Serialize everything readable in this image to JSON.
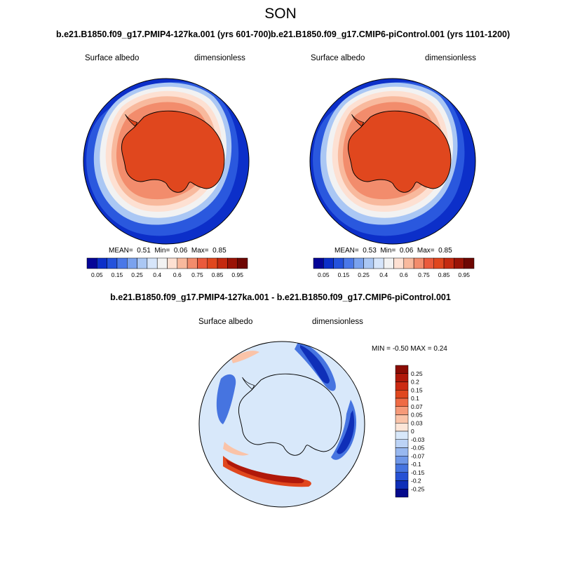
{
  "main_title": "SON",
  "panels": [
    {
      "case_title": "b.e21.B1850.f09_g17.PMIP4-127ka.001 (yrs 601-700)",
      "left_label": "Surface albedo",
      "right_label": "dimensionless",
      "stats": {
        "mean_label": "MEAN=",
        "mean": "0.51",
        "min_label": "Min=",
        "min": "0.06",
        "max_label": "Max=",
        "max": "0.85"
      }
    },
    {
      "case_title": "b.e21.B1850.f09_g17.CMIP6-piControl.001 (yrs 1101-1200)",
      "left_label": "Surface albedo",
      "right_label": "dimensionless",
      "stats": {
        "mean_label": "MEAN=",
        "mean": "0.53",
        "min_label": "Min=",
        "min": "0.06",
        "max_label": "Max=",
        "max": "0.85"
      }
    }
  ],
  "diff_panel": {
    "title": "b.e21.B1850.f09_g17.PMIP4-127ka.001 - b.e21.B1850.f09_g17.CMIP6-piControl.001",
    "left_label": "Surface albedo",
    "right_label": "dimensionless",
    "stats_text": "MIN =  -0.50 MAX =   0.24"
  },
  "chart_data": [
    {
      "type": "heatmap",
      "projection": "south-polar-stereographic",
      "variable": "Surface albedo",
      "units": "dimensionless",
      "mean": 0.51,
      "min": 0.06,
      "max": 0.85,
      "colorbar": {
        "orientation": "horizontal",
        "levels": [
          0.05,
          0.1,
          0.15,
          0.2,
          0.25,
          0.3,
          0.4,
          0.5,
          0.6,
          0.7,
          0.75,
          0.8,
          0.85,
          0.9,
          0.95
        ],
        "labels": [
          "0.05",
          "0.15",
          "0.25",
          "0.4",
          "0.6",
          "0.75",
          "0.85",
          "0.95"
        ],
        "colors": [
          "#050597",
          "#0c2fc9",
          "#2452dc",
          "#4a78e8",
          "#7aa2ee",
          "#aac7f4",
          "#d6e5fa",
          "#f2f2f2",
          "#fde0d2",
          "#f8b99d",
          "#f28c6c",
          "#ea5a3c",
          "#e0471e",
          "#c42a10",
          "#9a1306",
          "#6e0703"
        ]
      }
    },
    {
      "type": "heatmap",
      "projection": "south-polar-stereographic",
      "variable": "Surface albedo",
      "units": "dimensionless",
      "mean": 0.53,
      "min": 0.06,
      "max": 0.85,
      "colorbar": {
        "orientation": "horizontal",
        "levels": [
          0.05,
          0.1,
          0.15,
          0.2,
          0.25,
          0.3,
          0.4,
          0.5,
          0.6,
          0.7,
          0.75,
          0.8,
          0.85,
          0.9,
          0.95
        ],
        "labels": [
          "0.05",
          "0.15",
          "0.25",
          "0.4",
          "0.6",
          "0.75",
          "0.85",
          "0.95"
        ],
        "colors": [
          "#050597",
          "#0c2fc9",
          "#2452dc",
          "#4a78e8",
          "#7aa2ee",
          "#aac7f4",
          "#d6e5fa",
          "#f2f2f2",
          "#fde0d2",
          "#f8b99d",
          "#f28c6c",
          "#ea5a3c",
          "#e0471e",
          "#c42a10",
          "#9a1306",
          "#6e0703"
        ]
      }
    },
    {
      "type": "heatmap",
      "projection": "south-polar-stereographic",
      "variable": "Surface albedo",
      "units": "dimensionless",
      "min": -0.5,
      "max": 0.24,
      "colorbar": {
        "orientation": "vertical",
        "labels": [
          "0.25",
          "0.2",
          "0.15",
          "0.1",
          "0.07",
          "0.05",
          "0.03",
          "0",
          "-0.03",
          "-0.05",
          "-0.07",
          "-0.1",
          "-0.15",
          "-0.2",
          "-0.25"
        ],
        "colors": [
          "#8b0c04",
          "#b0180a",
          "#cc2a12",
          "#e0471e",
          "#ef6b45",
          "#f69a79",
          "#fac3a8",
          "#fde6d8",
          "#d8e8fa",
          "#bcd3f6",
          "#98b8f0",
          "#6f97e8",
          "#4674e0",
          "#2651d4",
          "#0f2fb8",
          "#050a8c"
        ]
      }
    }
  ]
}
